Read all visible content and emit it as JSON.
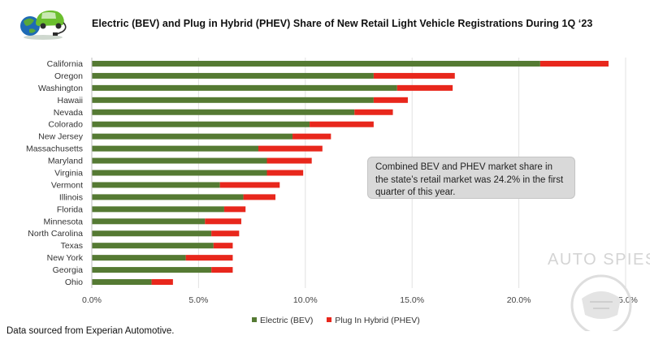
{
  "title": "Electric (BEV) and Plug in Hybrid (PHEV) Share of New Retail Light Vehicle Registrations During 1Q ‘23",
  "callout": "Combined BEV and PHEV market share in the state’s retail market was 24.2% in the first quarter of this year.",
  "source": "Data sourced from Experian Automotive.",
  "watermark": "AUTO SPIES",
  "colors": {
    "bev": "#557a33",
    "phev": "#e8271c",
    "grid": "#e2e2e2"
  },
  "icons": {
    "logo": "green-car-plug-logo",
    "watermark": "auto-spies-emblem"
  },
  "chart_data": {
    "type": "bar",
    "orientation": "horizontal",
    "stacked": true,
    "title": "Electric (BEV) and Plug in Hybrid (PHEV) Share of New Retail Light Vehicle Registrations During 1Q ‘23",
    "categories": [
      "California",
      "Oregon",
      "Washington",
      "Hawaii",
      "Nevada",
      "Colorado",
      "New Jersey",
      "Massachusetts",
      "Maryland",
      "Virginia",
      "Vermont",
      "Illinois",
      "Florida",
      "Minnesota",
      "North Carolina",
      "Texas",
      "New York",
      "Georgia",
      "Ohio"
    ],
    "series": [
      {
        "name": "Electric (BEV)",
        "values": [
          21.0,
          13.2,
          14.3,
          13.2,
          12.3,
          10.2,
          9.4,
          7.8,
          8.2,
          8.2,
          6.0,
          7.1,
          6.2,
          5.3,
          5.6,
          5.7,
          4.4,
          5.6,
          2.8
        ]
      },
      {
        "name": "Plug In Hybrid (PHEV)",
        "values": [
          3.2,
          3.8,
          2.6,
          1.6,
          1.8,
          3.0,
          1.8,
          3.0,
          2.1,
          1.7,
          2.8,
          1.5,
          1.0,
          1.7,
          1.3,
          0.9,
          2.2,
          1.0,
          1.0
        ]
      }
    ],
    "xlim": [
      0,
      25
    ],
    "xticks": [
      "0.0%",
      "5.0%",
      "10.0%",
      "15.0%",
      "20.0%",
      "25.0%"
    ],
    "xlabel": "",
    "ylabel": "",
    "grid": true,
    "legend_position": "bottom"
  }
}
